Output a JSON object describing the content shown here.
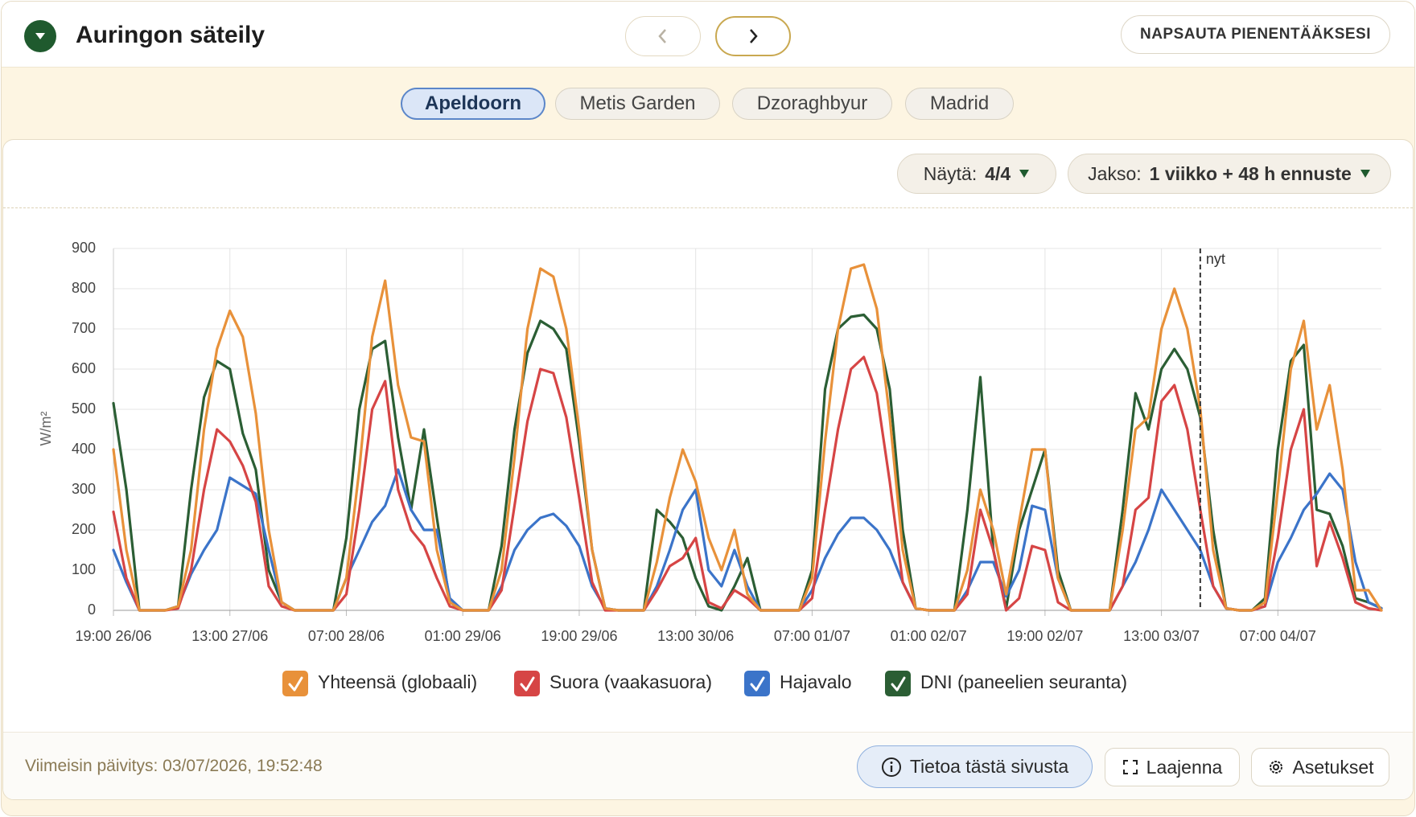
{
  "header": {
    "title": "Auringon säteily",
    "collapse_button": "NAPSAUTA PIENENTÄÄKSESI"
  },
  "tabs": {
    "items": [
      "Apeldoorn",
      "Metis Garden",
      "Dzoraghbyur",
      "Madrid"
    ],
    "active": 0
  },
  "controls": {
    "show_label": "Näytä:",
    "show_value": "4/4",
    "period_label": "Jakso:",
    "period_value": "1 viikko + 48 h ennuste"
  },
  "chart_data": {
    "type": "line",
    "y_label": "W/m²",
    "x": [
      0,
      2,
      4,
      6,
      8,
      10,
      12,
      14,
      16,
      18,
      20,
      22,
      24,
      26,
      28,
      30,
      32,
      34,
      36,
      38,
      40,
      42,
      44,
      46,
      48,
      50,
      52,
      54,
      56,
      58,
      60,
      62,
      64,
      66,
      68,
      70,
      72,
      74,
      76,
      78,
      80,
      82,
      84,
      86,
      88,
      90,
      92,
      94,
      96,
      98,
      100,
      102,
      104,
      106,
      108,
      110,
      112,
      114,
      116,
      118,
      120,
      122,
      124,
      126,
      128,
      130,
      132,
      134,
      136,
      138,
      140,
      142,
      144,
      146,
      148,
      150,
      152,
      154,
      156,
      158,
      160,
      162,
      164,
      166,
      168,
      170,
      172,
      174,
      176,
      178,
      180,
      182,
      184,
      186,
      188,
      190,
      192,
      194,
      196
    ],
    "xlim": [
      0,
      196
    ],
    "xticks": [
      {
        "value": 0,
        "label": "19:00 26/06"
      },
      {
        "value": 18,
        "label": "13:00 27/06"
      },
      {
        "value": 36,
        "label": "07:00 28/06"
      },
      {
        "value": 54,
        "label": "01:00 29/06"
      },
      {
        "value": 72,
        "label": "19:00 29/06"
      },
      {
        "value": 90,
        "label": "13:00 30/06"
      },
      {
        "value": 108,
        "label": "07:00 01/07"
      },
      {
        "value": 126,
        "label": "01:00 02/07"
      },
      {
        "value": 144,
        "label": "19:00 02/07"
      },
      {
        "value": 162,
        "label": "13:00 03/07"
      },
      {
        "value": 180,
        "label": "07:00 04/07"
      }
    ],
    "ylim": [
      0,
      900
    ],
    "yticks": [
      0,
      100,
      200,
      300,
      400,
      500,
      600,
      700,
      800,
      900
    ],
    "grid": true,
    "legend": "bottom",
    "annotations": [
      {
        "x": 168,
        "label": "nyt"
      }
    ],
    "series": [
      {
        "name": "Yhteensä (globaali)",
        "color": "#e8913a",
        "values": [
          400,
          150,
          0,
          0,
          0,
          10,
          150,
          450,
          650,
          745,
          680,
          490,
          200,
          20,
          0,
          0,
          0,
          0,
          80,
          350,
          680,
          820,
          560,
          430,
          420,
          150,
          20,
          0,
          0,
          0,
          100,
          380,
          700,
          850,
          830,
          700,
          450,
          150,
          5,
          0,
          0,
          0,
          120,
          280,
          400,
          320,
          180,
          100,
          200,
          40,
          0,
          0,
          0,
          0,
          80,
          420,
          700,
          850,
          860,
          750,
          480,
          150,
          5,
          0,
          0,
          0,
          100,
          300,
          200,
          40,
          220,
          400,
          400,
          80,
          0,
          0,
          0,
          0,
          200,
          450,
          480,
          700,
          800,
          700,
          500,
          150,
          5,
          0,
          0,
          20,
          300,
          600,
          720,
          450,
          560,
          350,
          50,
          50,
          0
        ]
      },
      {
        "name": "Suora (vaakasuora)",
        "color": "#d64545",
        "values": [
          245,
          80,
          0,
          0,
          0,
          5,
          100,
          300,
          450,
          420,
          360,
          270,
          60,
          10,
          0,
          0,
          0,
          0,
          40,
          250,
          500,
          570,
          300,
          200,
          160,
          80,
          10,
          0,
          0,
          0,
          50,
          260,
          470,
          600,
          590,
          480,
          280,
          70,
          0,
          0,
          0,
          0,
          50,
          110,
          130,
          180,
          20,
          5,
          50,
          30,
          0,
          0,
          0,
          0,
          30,
          250,
          450,
          600,
          630,
          540,
          320,
          70,
          5,
          0,
          0,
          0,
          40,
          250,
          150,
          0,
          30,
          160,
          150,
          20,
          0,
          0,
          0,
          0,
          60,
          250,
          280,
          520,
          560,
          450,
          250,
          60,
          5,
          0,
          0,
          10,
          180,
          400,
          500,
          110,
          220,
          130,
          20,
          5,
          0
        ]
      },
      {
        "name": "Hajavalo",
        "color": "#3b74c9",
        "values": [
          150,
          70,
          0,
          0,
          0,
          10,
          90,
          150,
          200,
          330,
          310,
          290,
          150,
          20,
          0,
          0,
          0,
          0,
          80,
          150,
          220,
          260,
          350,
          250,
          200,
          200,
          30,
          0,
          0,
          0,
          60,
          150,
          200,
          230,
          240,
          210,
          160,
          60,
          5,
          0,
          0,
          0,
          60,
          150,
          250,
          300,
          100,
          60,
          150,
          60,
          0,
          0,
          0,
          0,
          50,
          130,
          190,
          230,
          230,
          200,
          150,
          70,
          5,
          0,
          0,
          0,
          50,
          120,
          120,
          35,
          100,
          260,
          250,
          80,
          0,
          0,
          0,
          0,
          60,
          120,
          200,
          300,
          250,
          200,
          150,
          60,
          5,
          0,
          0,
          10,
          120,
          180,
          250,
          290,
          340,
          300,
          120,
          20,
          5
        ]
      },
      {
        "name": "DNI (paneelien seuranta)",
        "color": "#2b5e34",
        "values": [
          515,
          300,
          0,
          0,
          0,
          10,
          300,
          530,
          620,
          600,
          440,
          350,
          100,
          20,
          0,
          0,
          0,
          0,
          180,
          500,
          650,
          670,
          430,
          250,
          450,
          230,
          20,
          0,
          0,
          0,
          160,
          450,
          640,
          720,
          700,
          650,
          420,
          150,
          5,
          0,
          0,
          0,
          250,
          220,
          180,
          80,
          10,
          0,
          60,
          130,
          0,
          0,
          0,
          0,
          100,
          550,
          700,
          730,
          735,
          700,
          550,
          200,
          5,
          0,
          0,
          0,
          250,
          580,
          150,
          5,
          200,
          300,
          400,
          100,
          0,
          0,
          0,
          0,
          250,
          540,
          450,
          600,
          650,
          600,
          480,
          200,
          5,
          0,
          0,
          30,
          400,
          620,
          660,
          250,
          240,
          160,
          30,
          20,
          5
        ]
      }
    ]
  },
  "footer": {
    "last_update": "Viimeisin päivitys: 03/07/2026, 19:52:48",
    "buttons": [
      "Tietoa tästä sivusta",
      "Laajenna",
      "Asetukset"
    ]
  }
}
